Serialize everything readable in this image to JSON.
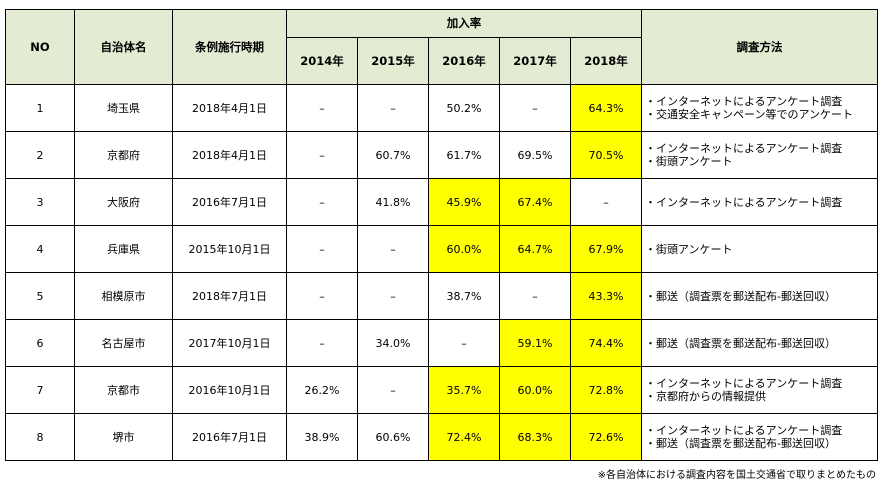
{
  "header": {
    "no": "NO",
    "municipality": "自治体名",
    "enforcement": "条例施行時期",
    "rate": "加入率",
    "years": [
      "2014年",
      "2015年",
      "2016年",
      "2017年",
      "2018年"
    ],
    "method": "調査方法"
  },
  "highlight_color": "#ffff00",
  "header_color": "#e3ecd3",
  "rows": [
    {
      "no": "1",
      "name": "埼玉県",
      "date": "2018年4月1日",
      "rates": [
        "–",
        "–",
        "50.2%",
        "–",
        "64.3%"
      ],
      "highlight": [
        false,
        false,
        false,
        false,
        true
      ],
      "methods": [
        "・インターネットによるアンケート調査",
        "・交通安全キャンペーン等でのアンケート"
      ]
    },
    {
      "no": "2",
      "name": "京都府",
      "date": "2018年4月1日",
      "rates": [
        "–",
        "60.7%",
        "61.7%",
        "69.5%",
        "70.5%"
      ],
      "highlight": [
        false,
        false,
        false,
        false,
        true
      ],
      "methods": [
        "・インターネットによるアンケート調査",
        "・街頭アンケート"
      ]
    },
    {
      "no": "3",
      "name": "大阪府",
      "date": "2016年7月1日",
      "rates": [
        "–",
        "41.8%",
        "45.9%",
        "67.4%",
        "–"
      ],
      "highlight": [
        false,
        false,
        true,
        true,
        false
      ],
      "methods": [
        "・インターネットによるアンケート調査"
      ]
    },
    {
      "no": "4",
      "name": "兵庫県",
      "date": "2015年10月1日",
      "rates": [
        "–",
        "–",
        "60.0%",
        "64.7%",
        "67.9%"
      ],
      "highlight": [
        false,
        false,
        true,
        true,
        true
      ],
      "methods": [
        "・街頭アンケート"
      ]
    },
    {
      "no": "5",
      "name": "相模原市",
      "date": "2018年7月1日",
      "rates": [
        "–",
        "–",
        "38.7%",
        "–",
        "43.3%"
      ],
      "highlight": [
        false,
        false,
        false,
        false,
        true
      ],
      "methods": [
        "・郵送（調査票を郵送配布-郵送回収）"
      ]
    },
    {
      "no": "6",
      "name": "名古屋市",
      "date": "2017年10月1日",
      "rates": [
        "–",
        "34.0%",
        "–",
        "59.1%",
        "74.4%"
      ],
      "highlight": [
        false,
        false,
        false,
        true,
        true
      ],
      "methods": [
        "・郵送（調査票を郵送配布-郵送回収）"
      ]
    },
    {
      "no": "7",
      "name": "京都市",
      "date": "2016年10月1日",
      "rates": [
        "26.2%",
        "–",
        "35.7%",
        "60.0%",
        "72.8%"
      ],
      "highlight": [
        false,
        false,
        true,
        true,
        true
      ],
      "methods": [
        "・インターネットによるアンケート調査",
        "・京都府からの情報提供"
      ]
    },
    {
      "no": "8",
      "name": "堺市",
      "date": "2016年7月1日",
      "rates": [
        "38.9%",
        "60.6%",
        "72.4%",
        "68.3%",
        "72.6%"
      ],
      "highlight": [
        false,
        false,
        true,
        true,
        true
      ],
      "methods": [
        "・インターネットによるアンケート調査",
        "・郵送（調査票を郵送配布-郵送回収）"
      ]
    }
  ],
  "footnote": "※各自治体における調査内容を国土交通省で取りまとめたもの"
}
